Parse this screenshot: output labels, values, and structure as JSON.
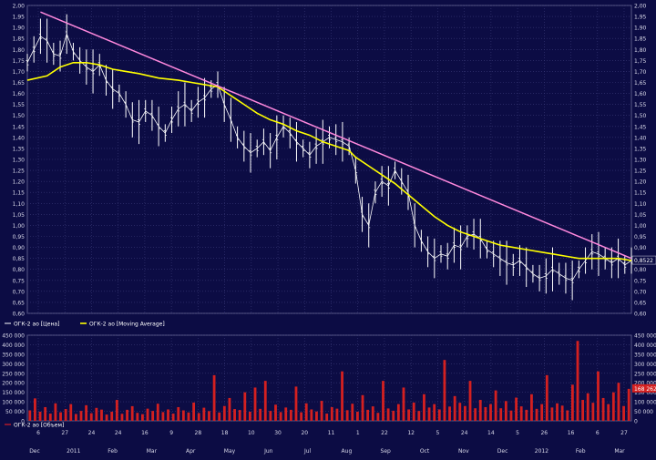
{
  "chart_data": [
    {
      "type": "candlestick",
      "title": "",
      "ylim": [
        0.6,
        2.0
      ],
      "y_ticks": [
        "2,00",
        "1,95",
        "1,90",
        "1,85",
        "1,80",
        "1,75",
        "1,70",
        "1,65",
        "1,60",
        "1,55",
        "1,50",
        "1,45",
        "1,40",
        "1,35",
        "1,30",
        "1,25",
        "1,20",
        "1,15",
        "1,10",
        "1,05",
        "1,00",
        "0,95",
        "0,90",
        "0,85",
        "0,80",
        "0,75",
        "0,70",
        "0,65",
        "0,60"
      ],
      "last_value_label": "0,8522",
      "grid": true,
      "legend": [
        {
          "label": "ОГК-2 ао [Цена]",
          "color": "#ffffff"
        },
        {
          "label": "ОГК-2 ао [Moving Average]",
          "color": "#ffff00"
        }
      ],
      "price_path": [
        [
          0,
          1.74
        ],
        [
          2,
          1.8
        ],
        [
          4,
          1.86
        ],
        [
          6,
          1.84
        ],
        [
          8,
          1.78
        ],
        [
          10,
          1.77
        ],
        [
          12,
          1.87
        ],
        [
          14,
          1.79
        ],
        [
          16,
          1.75
        ],
        [
          18,
          1.72
        ],
        [
          20,
          1.7
        ],
        [
          22,
          1.73
        ],
        [
          24,
          1.66
        ],
        [
          26,
          1.62
        ],
        [
          28,
          1.6
        ],
        [
          30,
          1.55
        ],
        [
          32,
          1.48
        ],
        [
          34,
          1.47
        ],
        [
          36,
          1.52
        ],
        [
          38,
          1.5
        ],
        [
          40,
          1.45
        ],
        [
          42,
          1.42
        ],
        [
          44,
          1.48
        ],
        [
          46,
          1.53
        ],
        [
          48,
          1.55
        ],
        [
          50,
          1.52
        ],
        [
          52,
          1.56
        ],
        [
          54,
          1.58
        ],
        [
          56,
          1.62
        ],
        [
          58,
          1.64
        ],
        [
          60,
          1.55
        ],
        [
          62,
          1.48
        ],
        [
          64,
          1.4
        ],
        [
          66,
          1.36
        ],
        [
          68,
          1.33
        ],
        [
          70,
          1.35
        ],
        [
          72,
          1.38
        ],
        [
          74,
          1.34
        ],
        [
          76,
          1.4
        ],
        [
          78,
          1.45
        ],
        [
          80,
          1.42
        ],
        [
          82,
          1.38
        ],
        [
          84,
          1.35
        ],
        [
          86,
          1.32
        ],
        [
          88,
          1.36
        ],
        [
          90,
          1.38
        ],
        [
          92,
          1.4
        ],
        [
          94,
          1.39
        ],
        [
          96,
          1.38
        ],
        [
          98,
          1.36
        ],
        [
          100,
          1.25
        ],
        [
          102,
          1.05
        ],
        [
          104,
          1.0
        ],
        [
          106,
          1.15
        ],
        [
          108,
          1.2
        ],
        [
          110,
          1.18
        ],
        [
          112,
          1.25
        ],
        [
          114,
          1.2
        ],
        [
          116,
          1.15
        ],
        [
          118,
          1.0
        ],
        [
          120,
          0.93
        ],
        [
          122,
          0.88
        ],
        [
          124,
          0.85
        ],
        [
          126,
          0.87
        ],
        [
          128,
          0.86
        ],
        [
          130,
          0.91
        ],
        [
          132,
          0.9
        ],
        [
          134,
          0.95
        ],
        [
          136,
          0.96
        ],
        [
          138,
          0.94
        ],
        [
          140,
          0.89
        ],
        [
          142,
          0.87
        ],
        [
          144,
          0.85
        ],
        [
          146,
          0.83
        ],
        [
          148,
          0.82
        ],
        [
          150,
          0.84
        ],
        [
          152,
          0.81
        ],
        [
          154,
          0.78
        ],
        [
          156,
          0.76
        ],
        [
          158,
          0.77
        ],
        [
          160,
          0.8
        ],
        [
          162,
          0.78
        ],
        [
          164,
          0.76
        ],
        [
          166,
          0.75
        ],
        [
          168,
          0.8
        ],
        [
          170,
          0.84
        ],
        [
          172,
          0.88
        ],
        [
          174,
          0.87
        ],
        [
          176,
          0.85
        ],
        [
          178,
          0.83
        ],
        [
          180,
          0.85
        ],
        [
          182,
          0.82
        ],
        [
          184,
          0.84
        ]
      ],
      "moving_average_path": [
        [
          0,
          1.66
        ],
        [
          6,
          1.68
        ],
        [
          10,
          1.72
        ],
        [
          14,
          1.74
        ],
        [
          18,
          1.74
        ],
        [
          22,
          1.73
        ],
        [
          26,
          1.71
        ],
        [
          30,
          1.7
        ],
        [
          34,
          1.69
        ],
        [
          40,
          1.67
        ],
        [
          46,
          1.66
        ],
        [
          50,
          1.65
        ],
        [
          54,
          1.64
        ],
        [
          58,
          1.63
        ],
        [
          62,
          1.59
        ],
        [
          66,
          1.55
        ],
        [
          70,
          1.51
        ],
        [
          74,
          1.48
        ],
        [
          78,
          1.46
        ],
        [
          82,
          1.43
        ],
        [
          86,
          1.41
        ],
        [
          90,
          1.38
        ],
        [
          94,
          1.36
        ],
        [
          98,
          1.34
        ],
        [
          100,
          1.31
        ],
        [
          104,
          1.27
        ],
        [
          108,
          1.23
        ],
        [
          112,
          1.19
        ],
        [
          116,
          1.14
        ],
        [
          120,
          1.09
        ],
        [
          124,
          1.04
        ],
        [
          128,
          1.0
        ],
        [
          132,
          0.97
        ],
        [
          136,
          0.95
        ],
        [
          140,
          0.93
        ],
        [
          144,
          0.91
        ],
        [
          148,
          0.9
        ],
        [
          152,
          0.89
        ],
        [
          156,
          0.88
        ],
        [
          160,
          0.87
        ],
        [
          164,
          0.86
        ],
        [
          168,
          0.85
        ],
        [
          172,
          0.85
        ],
        [
          176,
          0.85
        ],
        [
          180,
          0.85
        ],
        [
          184,
          0.84
        ]
      ],
      "trendline_path": [
        [
          4,
          1.97
        ],
        [
          184,
          0.85
        ]
      ]
    },
    {
      "type": "bar",
      "title": "",
      "ylim": [
        0,
        450000
      ],
      "y_ticks": [
        "450 000",
        "400 000",
        "350 000",
        "300 000",
        "250 000",
        "200 000",
        "150 000",
        "100 000",
        "50 000",
        "0"
      ],
      "last_value_label": "168 262",
      "legend": [
        {
          "label": "ОГК-2 ао [Объем]",
          "color": "#ff2020"
        }
      ],
      "values": [
        55000,
        118000,
        48000,
        72000,
        38000,
        92000,
        45000,
        62000,
        88000,
        36000,
        52000,
        82000,
        40000,
        68000,
        59000,
        33000,
        48000,
        110000,
        37000,
        58000,
        77000,
        42000,
        35000,
        64000,
        52000,
        90000,
        46000,
        60000,
        38000,
        72000,
        55000,
        44000,
        96000,
        41000,
        69000,
        51000,
        240000,
        44000,
        78000,
        120000,
        62000,
        57000,
        150000,
        48000,
        175000,
        63000,
        210000,
        52000,
        85000,
        46000,
        70000,
        58000,
        180000,
        45000,
        92000,
        60000,
        49000,
        105000,
        38000,
        72000,
        64000,
        260000,
        56000,
        90000,
        48000,
        135000,
        58000,
        76000,
        42000,
        210000,
        65000,
        53000,
        88000,
        175000,
        60000,
        96000,
        52000,
        140000,
        70000,
        88000,
        60000,
        320000,
        75000,
        130000,
        95000,
        78000,
        210000,
        66000,
        110000,
        72000,
        88000,
        160000,
        66000,
        104000,
        54000,
        122000,
        76000,
        58000,
        140000,
        63000,
        88000,
        240000,
        70000,
        92000,
        80000,
        55000,
        190000,
        420000,
        110000,
        145000,
        95000,
        260000,
        120000,
        88000,
        150000,
        200000,
        78000,
        168262
      ]
    }
  ],
  "x_axis": {
    "day_labels": [
      "6",
      "27",
      "24",
      "24",
      "16",
      "9",
      "28",
      "18",
      "10",
      "30",
      "20",
      "11",
      "1",
      "22",
      "12",
      "5",
      "24",
      "14",
      "5",
      "26",
      "16",
      "6",
      "27"
    ],
    "month_labels": [
      "Dec",
      "2011",
      "Feb",
      "Mar",
      "Apr",
      "May",
      "Jun",
      "Jul",
      "Aug",
      "Sep",
      "Oct",
      "Nov",
      "Dec",
      "2012",
      "Feb",
      "Mar"
    ]
  }
}
